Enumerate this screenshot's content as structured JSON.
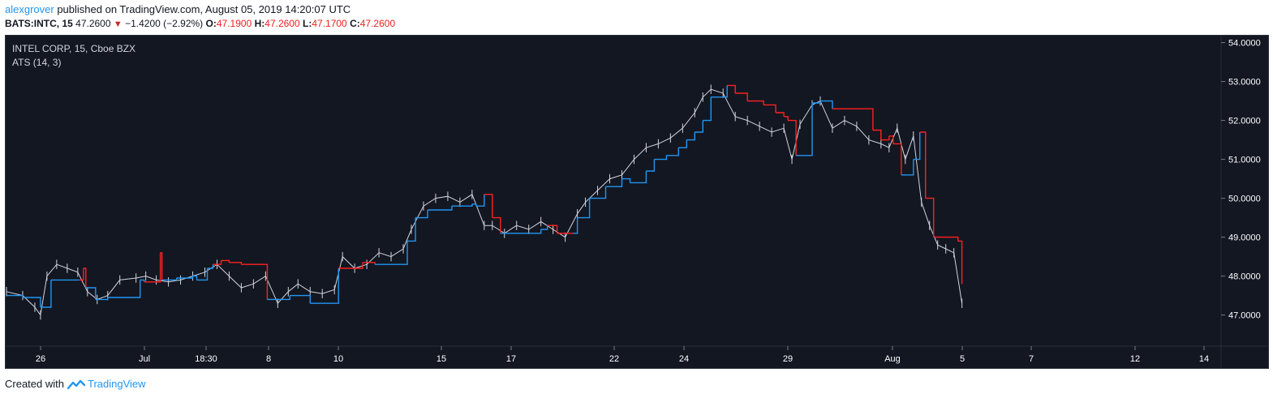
{
  "header": {
    "author": "alexgrover",
    "published": "published on TradingView.com, August 05, 2019 14:20:07 UTC"
  },
  "symbol_line": {
    "symbol": "BATS:INTC, 15",
    "last": "47.2600",
    "change": "−1.4200 (−2.92%)",
    "open_label": "O:",
    "open": "47.1900",
    "high_label": "H:",
    "high": "47.2600",
    "low_label": "L:",
    "low": "47.1700",
    "close_label": "C:",
    "close": "47.2600"
  },
  "chart_title": "INTEL CORP, 15, Cboe BZX",
  "indicator_label": "ATS (14, 3)",
  "footer": {
    "created_with": "Created with",
    "brand": "TradingView"
  },
  "colors": {
    "background": "#131722",
    "price": "#d1d4dc",
    "stop_up": "#2196f3",
    "stop_down": "#ff2020",
    "axis_text": "#ffffff"
  },
  "chart_data": {
    "type": "line",
    "x_tick_labels": [
      "26",
      "Jul",
      "18:30",
      "8",
      "10",
      "15",
      "17",
      "22",
      "24",
      "29",
      "Aug",
      "5",
      "7",
      "12",
      "14"
    ],
    "y_tick_labels": [
      "54.0000",
      "53.0000",
      "52.0000",
      "51.0000",
      "50.0000",
      "49.0000",
      "48.0000",
      "47.0000"
    ],
    "ylim": [
      46.2,
      54.2
    ],
    "xlim": [
      0,
      1500
    ],
    "series": [
      {
        "key": "price",
        "x": [
          0,
          20,
          35,
          42,
          50,
          62,
          75,
          88,
          100,
          112,
          125,
          140,
          160,
          172,
          185,
          200,
          215,
          230,
          245,
          260,
          275,
          290,
          305,
          320,
          335,
          348,
          360,
          375,
          390,
          405,
          415,
          430,
          445,
          460,
          475,
          490,
          500,
          515,
          530,
          545,
          560,
          575,
          590,
          600,
          615,
          630,
          645,
          660,
          675,
          690,
          705,
          715,
          730,
          745,
          760,
          775,
          790,
          805,
          820,
          835,
          850,
          860,
          870,
          885,
          900,
          915,
          930,
          945,
          960,
          970,
          980,
          995,
          1005,
          1020,
          1035,
          1050,
          1065,
          1080,
          1090,
          1100,
          1110,
          1120,
          1130,
          1140,
          1150,
          1160,
          1170,
          1180
        ],
        "y": [
          47.6,
          47.5,
          47.2,
          47.0,
          48.0,
          48.3,
          48.2,
          48.1,
          47.6,
          47.4,
          47.5,
          47.9,
          47.95,
          48.0,
          47.9,
          47.85,
          47.9,
          48.0,
          48.1,
          48.3,
          48.0,
          47.7,
          47.8,
          48.0,
          47.3,
          47.6,
          47.8,
          47.6,
          47.55,
          47.65,
          48.5,
          48.2,
          48.3,
          48.6,
          48.5,
          48.7,
          49.2,
          49.8,
          50.0,
          50.05,
          49.9,
          50.1,
          49.3,
          49.3,
          49.1,
          49.3,
          49.2,
          49.4,
          49.2,
          49.0,
          49.6,
          49.9,
          50.2,
          50.5,
          50.6,
          51.0,
          51.3,
          51.4,
          51.55,
          51.8,
          52.2,
          52.6,
          52.8,
          52.7,
          52.1,
          52.0,
          51.85,
          51.7,
          51.8,
          51.0,
          51.9,
          52.4,
          52.5,
          51.8,
          52.0,
          51.85,
          51.5,
          51.4,
          51.3,
          51.8,
          51.0,
          51.6,
          49.9,
          49.3,
          48.8,
          48.7,
          48.6,
          47.3
        ]
      },
      {
        "key": "stop",
        "x": [
          0,
          20,
          42,
          45,
          55,
          90,
          95,
          98,
          110,
          125,
          165,
          170,
          190,
          192,
          200,
          210,
          230,
          235,
          248,
          255,
          265,
          275,
          290,
          320,
          322,
          335,
          350,
          365,
          375,
          408,
          410,
          440,
          455,
          490,
          495,
          505,
          520,
          550,
          575,
          580,
          590,
          600,
          610,
          640,
          660,
          668,
          680,
          700,
          705,
          720,
          740,
          760,
          770,
          790,
          800,
          815,
          830,
          840,
          850,
          860,
          870,
          880,
          890,
          900,
          915,
          935,
          950,
          960,
          965,
          975,
          985,
          995,
          1005,
          1020,
          1040,
          1060,
          1070,
          1080,
          1090,
          1095,
          1105,
          1112,
          1120,
          1128,
          1135,
          1145,
          1175,
          1180
        ],
        "y": [
          47.5,
          47.45,
          47.2,
          47.2,
          47.9,
          47.9,
          48.2,
          47.7,
          47.4,
          47.45,
          47.9,
          47.85,
          48.6,
          47.9,
          47.9,
          47.95,
          48.0,
          47.9,
          48.2,
          48.3,
          48.4,
          48.35,
          48.3,
          48.3,
          47.4,
          47.4,
          47.5,
          47.5,
          47.3,
          47.3,
          48.2,
          48.35,
          48.3,
          48.3,
          48.9,
          49.5,
          49.7,
          49.8,
          49.85,
          49.8,
          50.1,
          49.5,
          49.1,
          49.1,
          49.2,
          49.3,
          49.1,
          49.1,
          49.5,
          50.0,
          50.3,
          50.5,
          50.4,
          50.7,
          51.0,
          51.1,
          51.3,
          51.5,
          51.7,
          52.0,
          52.6,
          52.6,
          52.9,
          52.7,
          52.5,
          52.4,
          52.2,
          52.1,
          52.0,
          51.1,
          51.1,
          52.45,
          52.5,
          52.3,
          52.3,
          52.3,
          51.75,
          51.5,
          51.6,
          51.4,
          50.6,
          50.6,
          51.0,
          51.7,
          50.0,
          49.0,
          48.9,
          47.8
        ],
        "colors": [
          "up",
          "up",
          "up",
          "up",
          "up",
          "down",
          "down",
          "up",
          "up",
          "up",
          "up",
          "down",
          "down",
          "up",
          "up",
          "up",
          "up",
          "up",
          "up",
          "down",
          "down",
          "down",
          "down",
          "down",
          "up",
          "up",
          "up",
          "up",
          "up",
          "up",
          "down",
          "down",
          "up",
          "up",
          "up",
          "up",
          "up",
          "up",
          "up",
          "up",
          "down",
          "down",
          "up",
          "up",
          "up",
          "down",
          "down",
          "up",
          "up",
          "up",
          "up",
          "up",
          "up",
          "up",
          "up",
          "up",
          "up",
          "up",
          "up",
          "up",
          "up",
          "up",
          "down",
          "down",
          "down",
          "down",
          "down",
          "down",
          "down",
          "up",
          "up",
          "up",
          "up",
          "down",
          "down",
          "down",
          "down",
          "down",
          "down",
          "down",
          "up",
          "up",
          "up",
          "down",
          "down",
          "down",
          "down",
          "down"
        ]
      }
    ]
  }
}
